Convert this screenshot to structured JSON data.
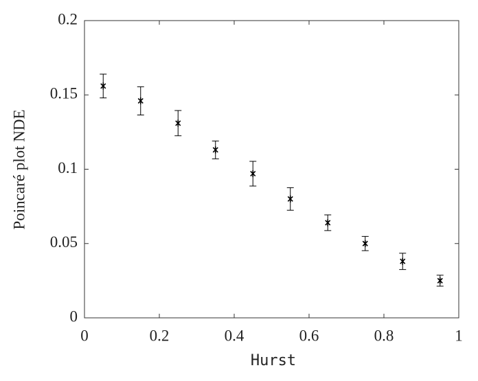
{
  "chart_data": {
    "type": "errorbar",
    "xlabel": "Hurst",
    "ylabel": "Poincaré plot NDE",
    "series": [
      {
        "color": "#000000",
        "x": [
          0.05,
          0.15,
          0.25,
          0.35,
          0.45,
          0.55,
          0.65,
          0.75,
          0.85,
          0.95
        ],
        "values": [
          0.156,
          0.146,
          0.131,
          0.113,
          0.097,
          0.08,
          0.064,
          0.05,
          0.038,
          0.025
        ],
        "errors": [
          0.008,
          0.0095,
          0.0085,
          0.006,
          0.0083,
          0.0076,
          0.0053,
          0.0048,
          0.0055,
          0.0037
        ]
      }
    ],
    "xlim": [
      0,
      1
    ],
    "xticks": [
      0,
      0.2,
      0.4,
      0.6,
      0.8,
      1
    ],
    "ylim": [
      0,
      0.2
    ],
    "yticks": [
      0,
      0.05,
      0.1,
      0.15,
      0.2
    ],
    "grid": false
  }
}
